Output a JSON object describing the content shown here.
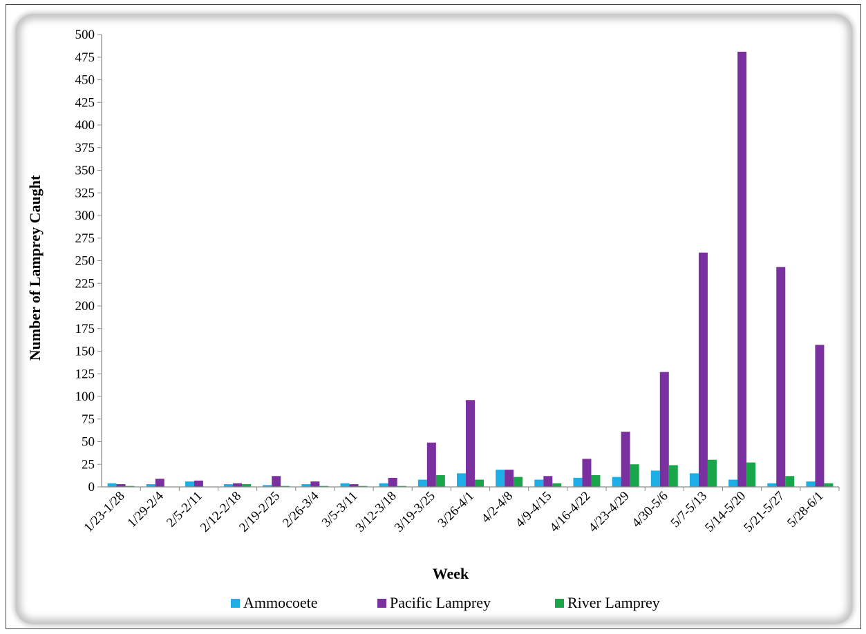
{
  "chart_data": {
    "type": "bar",
    "title": "",
    "xlabel": "Week",
    "ylabel": "Number of Lamprey Caught",
    "ylim": [
      0,
      500
    ],
    "ytick_step": 25,
    "yticks": [
      "0",
      "25",
      "50",
      "75",
      "100",
      "125",
      "150",
      "175",
      "200",
      "225",
      "250",
      "275",
      "300",
      "325",
      "350",
      "375",
      "400",
      "425",
      "450",
      "475",
      "500"
    ],
    "grid": false,
    "legend_position": "bottom",
    "categories": [
      "1/23-1/28",
      "1/29-2/4",
      "2/5-2/11",
      "2/12-2/18",
      "2/19-2/25",
      "2/26-3/4",
      "3/5-3/11",
      "3/12-3/18",
      "3/19-3/25",
      "3/26-4/1",
      "4/2-4/8",
      "4/9-4/15",
      "4/16-4/22",
      "4/23-4/29",
      "4/30-5/6",
      "5/7-5/13",
      "5/14-5/20",
      "5/21-5/27",
      "5/28-6/1"
    ],
    "series": [
      {
        "name": "Ammocoete",
        "color": "#1eaee6",
        "values": [
          4,
          3,
          6,
          3,
          2,
          3,
          4,
          4,
          8,
          15,
          19,
          8,
          10,
          11,
          18,
          15,
          8,
          4,
          6
        ]
      },
      {
        "name": "Pacific Lamprey",
        "color": "#7b30a0",
        "values": [
          3,
          9,
          7,
          4,
          12,
          6,
          3,
          10,
          49,
          96,
          19,
          12,
          31,
          61,
          127,
          259,
          481,
          243,
          157
        ]
      },
      {
        "name": "River Lamprey",
        "color": "#19a64a",
        "values": [
          1,
          0,
          0,
          3,
          1,
          1,
          1,
          1,
          13,
          8,
          11,
          4,
          13,
          25,
          24,
          30,
          27,
          12,
          4
        ]
      }
    ]
  }
}
